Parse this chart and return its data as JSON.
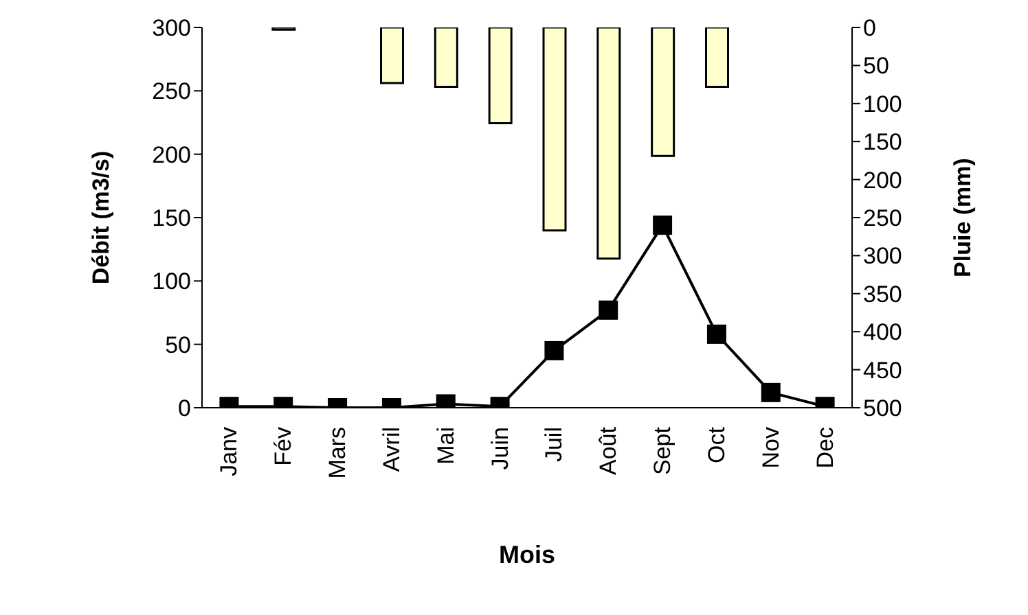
{
  "chart_data": {
    "type": "line",
    "xlabel": "Mois",
    "ylabel": "Débit (m3/s)",
    "y2label": "Pluie (mm)",
    "categories": [
      "Janv",
      "Fév",
      "Mars",
      "Avril",
      "Mai",
      "Juin",
      "Juil",
      "Août",
      "Sept",
      "Oct",
      "Nov",
      "Dec"
    ],
    "series": [
      {
        "type": "bar",
        "axis": "y2",
        "color": "#ffffcc",
        "values": [
          0,
          3,
          0,
          73,
          78,
          126,
          267,
          304,
          169,
          78,
          0,
          0
        ]
      },
      {
        "color": "#000000",
        "marker": "square",
        "values": [
          1,
          1,
          0,
          0,
          3,
          1,
          45,
          77,
          144,
          58,
          12,
          1
        ]
      }
    ],
    "ylim": [
      0,
      300
    ],
    "yticks": [
      0,
      50,
      100,
      150,
      200,
      250,
      300
    ],
    "y2lim": [
      500,
      0
    ],
    "y2ticks": [
      0,
      50,
      100,
      150,
      200,
      250,
      300,
      350,
      400,
      450,
      500
    ],
    "grid": false
  }
}
